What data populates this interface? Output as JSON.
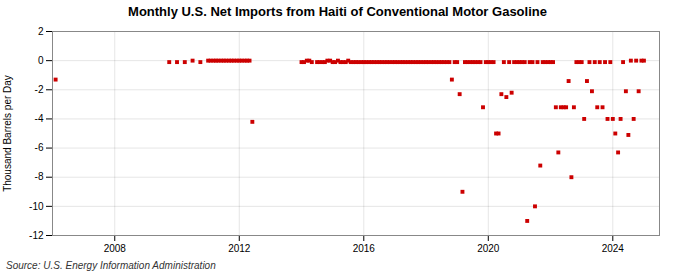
{
  "chart_data": {
    "type": "scatter",
    "title": "Monthly U.S. Net Imports from Haiti of Conventional Motor Gasoline",
    "ylabel": "Thousand Barrels per Day",
    "source": "Source: U.S. Energy Information Administration",
    "color": "#cc0000",
    "marker": "square",
    "grid": true,
    "xlim": [
      2006.0,
      2025.5
    ],
    "xticks": [
      2008,
      2012,
      2016,
      2020,
      2024
    ],
    "ylim": [
      -12,
      2
    ],
    "yticks": [
      2,
      0,
      -2,
      -4,
      -6,
      -8,
      -10,
      -12
    ],
    "x": [
      2006.1,
      2009.75,
      2010.0,
      2010.25,
      2010.5,
      2010.75,
      2011.0,
      2011.08,
      2011.17,
      2011.25,
      2011.33,
      2011.42,
      2011.5,
      2011.58,
      2011.67,
      2011.75,
      2011.83,
      2011.92,
      2012.0,
      2012.08,
      2012.17,
      2012.25,
      2012.33,
      2012.42,
      2014.0,
      2014.08,
      2014.17,
      2014.25,
      2014.33,
      2014.5,
      2014.58,
      2014.67,
      2014.75,
      2014.83,
      2014.92,
      2015.0,
      2015.08,
      2015.17,
      2015.25,
      2015.33,
      2015.42,
      2015.5,
      2015.58,
      2015.67,
      2015.75,
      2015.83,
      2015.92,
      2016.0,
      2016.08,
      2016.17,
      2016.25,
      2016.33,
      2016.42,
      2016.5,
      2016.58,
      2016.67,
      2016.75,
      2016.83,
      2016.92,
      2017.0,
      2017.08,
      2017.17,
      2017.25,
      2017.33,
      2017.42,
      2017.5,
      2017.58,
      2017.67,
      2017.75,
      2017.83,
      2017.92,
      2018.0,
      2018.08,
      2018.17,
      2018.25,
      2018.33,
      2018.42,
      2018.5,
      2018.58,
      2018.67,
      2018.75,
      2018.83,
      2018.92,
      2019.0,
      2019.08,
      2019.17,
      2019.25,
      2019.33,
      2019.42,
      2019.5,
      2019.58,
      2019.67,
      2019.75,
      2019.83,
      2019.92,
      2020.0,
      2020.08,
      2020.17,
      2020.25,
      2020.33,
      2020.42,
      2020.5,
      2020.58,
      2020.67,
      2020.75,
      2020.83,
      2020.92,
      2021.0,
      2021.08,
      2021.17,
      2021.25,
      2021.33,
      2021.42,
      2021.5,
      2021.58,
      2021.67,
      2021.75,
      2021.83,
      2021.92,
      2022.0,
      2022.08,
      2022.17,
      2022.25,
      2022.33,
      2022.42,
      2022.5,
      2022.58,
      2022.67,
      2022.75,
      2022.83,
      2022.92,
      2023.0,
      2023.08,
      2023.17,
      2023.25,
      2023.33,
      2023.42,
      2023.5,
      2023.58,
      2023.67,
      2023.75,
      2023.83,
      2023.92,
      2024.0,
      2024.08,
      2024.17,
      2024.25,
      2024.33,
      2024.42,
      2024.5,
      2024.58,
      2024.67,
      2024.75,
      2024.83,
      2024.92,
      2025.0
    ],
    "values": [
      -1.3,
      -0.1,
      -0.1,
      -0.1,
      0.0,
      -0.1,
      0.0,
      0.0,
      0.0,
      0.0,
      0.0,
      0.0,
      0.0,
      0.0,
      0.0,
      0.0,
      0.0,
      0.0,
      0.0,
      0.0,
      0.0,
      0.0,
      0.0,
      -4.2,
      -0.1,
      -0.1,
      0.0,
      0.0,
      -0.1,
      -0.1,
      -0.1,
      -0.1,
      -0.1,
      0.0,
      0.0,
      -0.1,
      -0.1,
      0.0,
      -0.1,
      -0.1,
      -0.1,
      0.0,
      -0.1,
      -0.1,
      -0.1,
      -0.1,
      -0.1,
      -0.1,
      -0.1,
      -0.1,
      -0.1,
      -0.1,
      -0.1,
      -0.1,
      -0.1,
      -0.1,
      -0.1,
      -0.1,
      -0.1,
      -0.1,
      -0.1,
      -0.1,
      -0.1,
      -0.1,
      -0.1,
      -0.1,
      -0.1,
      -0.1,
      -0.1,
      -0.1,
      -0.1,
      -0.1,
      -0.1,
      -0.1,
      -0.1,
      -0.1,
      -0.1,
      -0.1,
      -0.1,
      -0.1,
      -0.1,
      -1.3,
      -0.1,
      -0.1,
      -2.3,
      -9.0,
      -0.1,
      -0.1,
      -0.1,
      -0.1,
      -0.1,
      -0.1,
      -0.1,
      -3.2,
      -0.1,
      -0.1,
      -0.1,
      -0.1,
      -5.0,
      -5.0,
      -2.3,
      -0.1,
      -2.5,
      -0.1,
      -2.2,
      -0.1,
      -0.1,
      -0.1,
      -0.1,
      -0.1,
      -11.0,
      -0.1,
      -0.1,
      -10.0,
      -0.1,
      -7.2,
      -0.1,
      -0.1,
      -0.1,
      -0.1,
      -0.1,
      -3.2,
      -6.3,
      -3.2,
      -3.2,
      -3.2,
      -1.4,
      -8.0,
      -3.2,
      -0.1,
      -0.1,
      -0.1,
      -4.0,
      -1.4,
      -0.1,
      -2.1,
      -0.1,
      -3.2,
      -0.1,
      -3.2,
      -0.1,
      -4.0,
      -0.1,
      -4.0,
      -5.0,
      -6.3,
      -4.0,
      -0.1,
      -2.1,
      -5.1,
      0.0,
      -4.0,
      0.0,
      -2.1,
      0.0,
      0.0
    ]
  }
}
